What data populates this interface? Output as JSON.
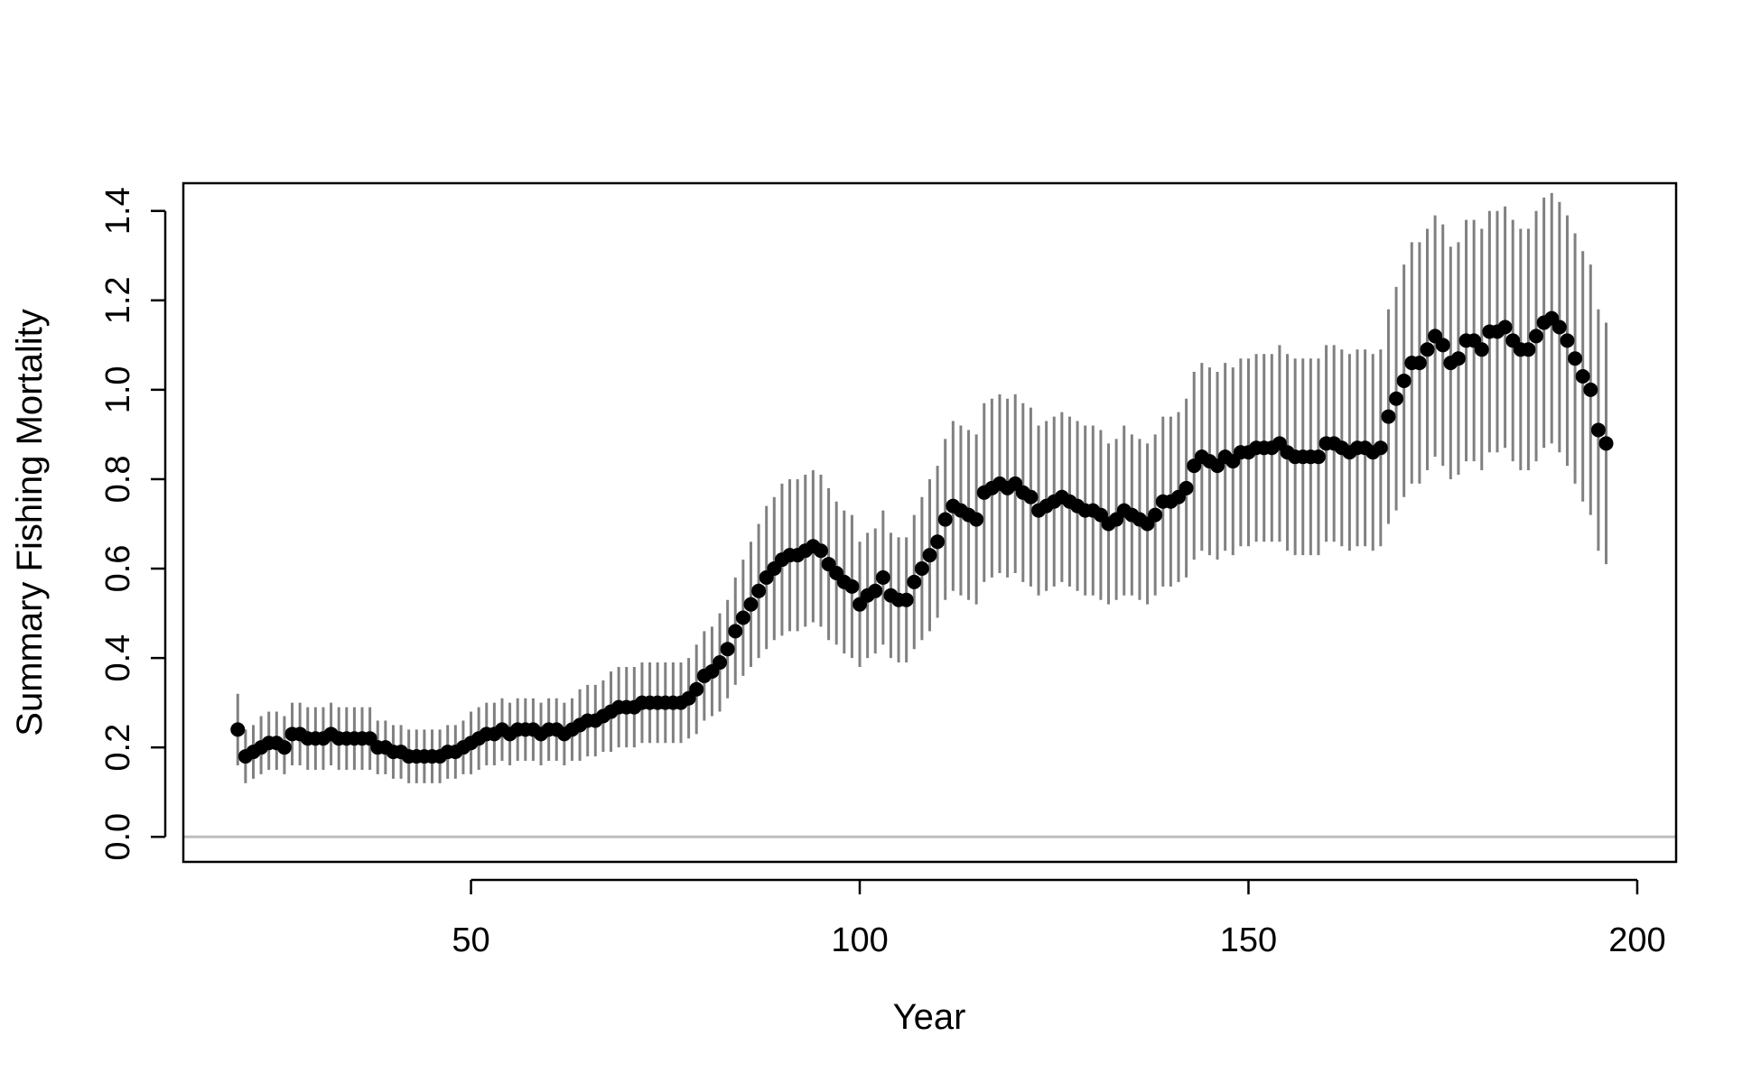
{
  "chart_data": {
    "type": "scatter",
    "title": "",
    "xlabel": "Year",
    "ylabel": "Summary Fishing Mortality",
    "xlim": [
      13,
      205
    ],
    "ylim": [
      -0.056,
      1.462
    ],
    "x_ticks": [
      "50",
      "100",
      "150",
      "200"
    ],
    "y_ticks": [
      "0.0",
      "0.2",
      "0.4",
      "0.6",
      "0.8",
      "1.0",
      "1.2",
      "1.4"
    ],
    "reference_line_y": 0,
    "colors": {
      "points": "#000000",
      "error_bars": "#808080",
      "reference_line": "#bebebe",
      "axes": "#000000"
    },
    "series": [
      {
        "x": [
          20,
          21,
          22,
          23,
          24,
          25,
          26,
          27,
          28,
          29,
          30,
          31,
          32,
          33,
          34,
          35,
          36,
          37,
          38,
          39,
          40,
          41,
          42,
          43,
          44,
          45,
          46,
          47,
          48,
          49,
          50,
          51,
          52,
          53,
          54,
          55,
          56,
          57,
          58,
          59,
          60,
          61,
          62,
          63,
          64,
          65,
          66,
          67,
          68,
          69,
          70,
          71,
          72,
          73,
          74,
          75,
          76,
          77,
          78,
          79,
          80,
          81,
          82,
          83,
          84,
          85,
          86,
          87,
          88,
          89,
          90,
          91,
          92,
          93,
          94,
          95,
          96,
          97,
          98,
          99,
          100,
          101,
          102,
          103,
          104,
          105,
          106,
          107,
          108,
          109,
          110,
          111,
          112,
          113,
          114,
          115,
          116,
          117,
          118,
          119,
          120,
          121,
          122,
          123,
          124,
          125,
          126,
          127,
          128,
          129,
          130,
          131,
          132,
          133,
          134,
          135,
          136,
          137,
          138,
          139,
          140,
          141,
          142,
          143,
          144,
          145,
          146,
          147,
          148,
          149,
          150,
          151,
          152,
          153,
          154,
          155,
          156,
          157,
          158,
          159,
          160,
          161,
          162,
          163,
          164,
          165,
          166,
          167,
          168,
          169,
          170,
          171,
          172,
          173,
          174,
          175,
          176,
          177,
          178,
          179,
          180,
          181,
          182,
          183,
          184,
          185,
          186,
          187,
          188,
          189,
          190,
          191,
          192,
          193,
          194,
          195,
          196
        ],
        "values": [
          0.24,
          0.18,
          0.19,
          0.2,
          0.21,
          0.21,
          0.2,
          0.23,
          0.23,
          0.22,
          0.22,
          0.22,
          0.23,
          0.22,
          0.22,
          0.22,
          0.22,
          0.22,
          0.2,
          0.2,
          0.19,
          0.19,
          0.18,
          0.18,
          0.18,
          0.18,
          0.18,
          0.19,
          0.19,
          0.2,
          0.21,
          0.22,
          0.23,
          0.23,
          0.24,
          0.23,
          0.24,
          0.24,
          0.24,
          0.23,
          0.24,
          0.24,
          0.23,
          0.24,
          0.25,
          0.26,
          0.26,
          0.27,
          0.28,
          0.29,
          0.29,
          0.29,
          0.3,
          0.3,
          0.3,
          0.3,
          0.3,
          0.3,
          0.31,
          0.33,
          0.36,
          0.37,
          0.39,
          0.42,
          0.46,
          0.49,
          0.52,
          0.55,
          0.58,
          0.6,
          0.62,
          0.63,
          0.63,
          0.64,
          0.65,
          0.64,
          0.61,
          0.59,
          0.57,
          0.56,
          0.52,
          0.54,
          0.55,
          0.58,
          0.54,
          0.53,
          0.53,
          0.57,
          0.6,
          0.63,
          0.66,
          0.71,
          0.74,
          0.73,
          0.72,
          0.71,
          0.77,
          0.78,
          0.79,
          0.78,
          0.79,
          0.77,
          0.76,
          0.73,
          0.74,
          0.75,
          0.76,
          0.75,
          0.74,
          0.73,
          0.73,
          0.72,
          0.7,
          0.71,
          0.73,
          0.72,
          0.71,
          0.7,
          0.72,
          0.75,
          0.75,
          0.76,
          0.78,
          0.83,
          0.85,
          0.84,
          0.83,
          0.85,
          0.84,
          0.86,
          0.86,
          0.87,
          0.87,
          0.87,
          0.88,
          0.86,
          0.85,
          0.85,
          0.85,
          0.85,
          0.88,
          0.88,
          0.87,
          0.86,
          0.87,
          0.87,
          0.86,
          0.87,
          0.94,
          0.98,
          1.02,
          1.06,
          1.06,
          1.09,
          1.12,
          1.1,
          1.06,
          1.07,
          1.11,
          1.11,
          1.09,
          1.13,
          1.13,
          1.14,
          1.11,
          1.09,
          1.09,
          1.12,
          1.15,
          1.16,
          1.14,
          1.11,
          1.07,
          1.03,
          1.0,
          0.91,
          0.88
        ],
        "lower": [
          0.16,
          0.12,
          0.13,
          0.14,
          0.15,
          0.15,
          0.14,
          0.16,
          0.16,
          0.15,
          0.15,
          0.15,
          0.16,
          0.15,
          0.15,
          0.15,
          0.15,
          0.15,
          0.14,
          0.14,
          0.13,
          0.13,
          0.12,
          0.12,
          0.12,
          0.12,
          0.12,
          0.13,
          0.13,
          0.14,
          0.14,
          0.15,
          0.16,
          0.16,
          0.17,
          0.16,
          0.17,
          0.17,
          0.17,
          0.16,
          0.17,
          0.17,
          0.16,
          0.17,
          0.17,
          0.18,
          0.18,
          0.19,
          0.19,
          0.2,
          0.2,
          0.2,
          0.21,
          0.21,
          0.21,
          0.21,
          0.21,
          0.21,
          0.22,
          0.23,
          0.26,
          0.27,
          0.28,
          0.31,
          0.34,
          0.36,
          0.38,
          0.4,
          0.42,
          0.44,
          0.45,
          0.46,
          0.46,
          0.47,
          0.48,
          0.47,
          0.44,
          0.43,
          0.41,
          0.4,
          0.38,
          0.4,
          0.41,
          0.43,
          0.4,
          0.39,
          0.39,
          0.42,
          0.44,
          0.46,
          0.49,
          0.53,
          0.55,
          0.54,
          0.53,
          0.52,
          0.57,
          0.58,
          0.59,
          0.58,
          0.59,
          0.57,
          0.56,
          0.54,
          0.55,
          0.56,
          0.57,
          0.56,
          0.55,
          0.54,
          0.54,
          0.53,
          0.52,
          0.53,
          0.54,
          0.54,
          0.53,
          0.52,
          0.54,
          0.56,
          0.56,
          0.57,
          0.58,
          0.62,
          0.64,
          0.63,
          0.62,
          0.64,
          0.63,
          0.65,
          0.65,
          0.66,
          0.66,
          0.66,
          0.66,
          0.64,
          0.63,
          0.63,
          0.63,
          0.63,
          0.66,
          0.66,
          0.65,
          0.64,
          0.65,
          0.65,
          0.64,
          0.65,
          0.7,
          0.73,
          0.76,
          0.79,
          0.79,
          0.82,
          0.85,
          0.83,
          0.8,
          0.81,
          0.84,
          0.84,
          0.82,
          0.86,
          0.86,
          0.87,
          0.84,
          0.82,
          0.82,
          0.84,
          0.87,
          0.88,
          0.86,
          0.83,
          0.79,
          0.75,
          0.72,
          0.64,
          0.61
        ],
        "upper": [
          0.32,
          0.24,
          0.25,
          0.27,
          0.28,
          0.28,
          0.27,
          0.3,
          0.3,
          0.29,
          0.29,
          0.29,
          0.3,
          0.29,
          0.29,
          0.29,
          0.29,
          0.29,
          0.26,
          0.26,
          0.25,
          0.25,
          0.24,
          0.24,
          0.24,
          0.24,
          0.24,
          0.25,
          0.25,
          0.26,
          0.28,
          0.29,
          0.3,
          0.3,
          0.31,
          0.3,
          0.31,
          0.31,
          0.31,
          0.3,
          0.31,
          0.31,
          0.3,
          0.31,
          0.33,
          0.34,
          0.34,
          0.35,
          0.37,
          0.38,
          0.38,
          0.38,
          0.39,
          0.39,
          0.39,
          0.39,
          0.39,
          0.39,
          0.4,
          0.43,
          0.46,
          0.47,
          0.5,
          0.53,
          0.58,
          0.62,
          0.66,
          0.7,
          0.74,
          0.76,
          0.79,
          0.8,
          0.8,
          0.81,
          0.82,
          0.81,
          0.78,
          0.75,
          0.73,
          0.72,
          0.66,
          0.68,
          0.69,
          0.73,
          0.68,
          0.67,
          0.67,
          0.72,
          0.76,
          0.8,
          0.83,
          0.89,
          0.93,
          0.92,
          0.91,
          0.9,
          0.97,
          0.98,
          0.99,
          0.98,
          0.99,
          0.97,
          0.96,
          0.92,
          0.93,
          0.94,
          0.95,
          0.94,
          0.93,
          0.92,
          0.92,
          0.91,
          0.88,
          0.89,
          0.92,
          0.9,
          0.89,
          0.88,
          0.9,
          0.94,
          0.94,
          0.95,
          0.98,
          1.04,
          1.06,
          1.05,
          1.04,
          1.06,
          1.05,
          1.07,
          1.07,
          1.08,
          1.08,
          1.08,
          1.1,
          1.08,
          1.07,
          1.07,
          1.07,
          1.07,
          1.1,
          1.1,
          1.09,
          1.08,
          1.09,
          1.09,
          1.08,
          1.09,
          1.18,
          1.23,
          1.28,
          1.33,
          1.33,
          1.36,
          1.39,
          1.37,
          1.32,
          1.33,
          1.38,
          1.38,
          1.36,
          1.4,
          1.4,
          1.41,
          1.38,
          1.36,
          1.36,
          1.4,
          1.43,
          1.44,
          1.42,
          1.39,
          1.35,
          1.31,
          1.28,
          1.18,
          1.15
        ]
      }
    ]
  }
}
